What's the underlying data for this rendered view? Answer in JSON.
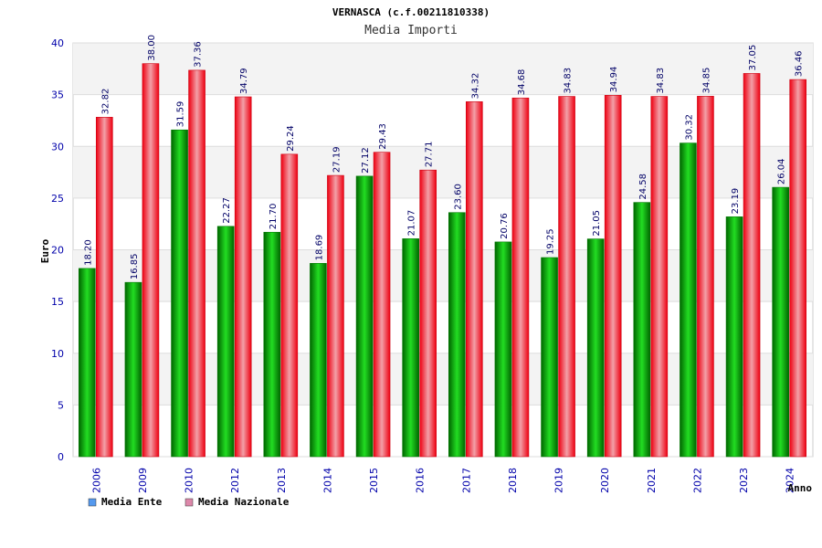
{
  "chart_data": {
    "type": "bar",
    "title": "VERNASCA (c.f.00211810338)",
    "subtitle": "Media Importi",
    "xlabel": "Anno",
    "ylabel": "Euro",
    "ylim": [
      0,
      40
    ],
    "yticks": [
      0,
      5,
      10,
      15,
      20,
      25,
      30,
      35,
      40
    ],
    "grid": true,
    "legend_position": "bottom-left",
    "categories": [
      "2006",
      "2009",
      "2010",
      "2012",
      "2013",
      "2014",
      "2015",
      "2016",
      "2017",
      "2018",
      "2019",
      "2020",
      "2021",
      "2022",
      "2023",
      "2024"
    ],
    "series": [
      {
        "name": "Media Ente",
        "color": "#00aa00",
        "legend_color": "#5599ee",
        "values": [
          18.2,
          16.85,
          31.59,
          22.27,
          21.7,
          18.69,
          27.12,
          21.07,
          23.6,
          20.76,
          19.25,
          21.05,
          24.58,
          30.32,
          23.19,
          26.04
        ],
        "labels": [
          "18.20",
          "16.85",
          "31.59",
          "22.27",
          "21.70",
          "18.69",
          "27.12",
          "21.07",
          "23.60",
          "20.76",
          "19.25",
          "21.05",
          "24.58",
          "30.32",
          "23.19",
          "26.04"
        ]
      },
      {
        "name": "Media Nazionale",
        "color": "#ee1122",
        "legend_color": "#dd88aa",
        "values": [
          32.82,
          38.0,
          37.36,
          34.79,
          29.24,
          27.19,
          29.43,
          27.71,
          34.32,
          34.68,
          34.83,
          34.94,
          34.83,
          34.85,
          37.05,
          36.46
        ],
        "labels": [
          "32.82",
          "38.00",
          "37.36",
          "34.79",
          "29.24",
          "27.19",
          "29.43",
          "27.71",
          "34.32",
          "34.68",
          "34.83",
          "34.94",
          "34.83",
          "34.85",
          "37.05",
          "36.46"
        ]
      }
    ]
  }
}
